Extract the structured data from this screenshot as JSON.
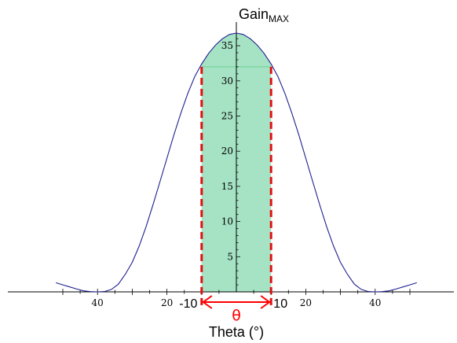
{
  "chart_data": {
    "type": "line",
    "title": "",
    "ylabel_main": "Gain",
    "ylabel_sub": "MAX",
    "xlabel": "Theta (°)",
    "theta_symbol": "θ",
    "xlim": [
      -52,
      52
    ],
    "ylim": [
      0,
      38
    ],
    "y_ticks": [
      5,
      10,
      15,
      20,
      25,
      30,
      35
    ],
    "x_ticks_small": [
      {
        "value": -40,
        "label": "40"
      },
      {
        "value": -20,
        "label": "20"
      },
      {
        "value": 20,
        "label": "20"
      },
      {
        "value": 40,
        "label": "40"
      }
    ],
    "x_ticks_large": [
      {
        "value": -10,
        "label": "-10"
      },
      {
        "value": 10,
        "label": "10"
      }
    ],
    "series": [
      {
        "color": "#1f1f8f",
        "x": [
          -52,
          -50,
          -48,
          -46,
          -44,
          -42,
          -40,
          -38,
          -36,
          -34,
          -32,
          -30,
          -28,
          -26,
          -24,
          -22,
          -20,
          -18,
          -16,
          -14,
          -12,
          -10,
          -8,
          -6,
          -4,
          -2,
          0,
          2,
          4,
          6,
          8,
          10,
          12,
          14,
          16,
          18,
          20,
          22,
          24,
          26,
          28,
          30,
          32,
          34,
          36,
          38,
          40,
          42,
          44,
          46,
          48,
          50,
          52
        ],
        "y": [
          1.3,
          1.0,
          0.7,
          0.4,
          0.15,
          0.03,
          0.0,
          0.05,
          0.35,
          1.1,
          2.5,
          4.2,
          6.5,
          9.3,
          12.4,
          15.7,
          19.0,
          22.3,
          25.4,
          28.2,
          30.6,
          32.4,
          33.9,
          35.1,
          36.0,
          36.6,
          36.8,
          36.6,
          36.0,
          35.1,
          33.9,
          32.4,
          30.6,
          28.2,
          25.4,
          22.3,
          19.0,
          15.7,
          12.4,
          9.3,
          6.5,
          4.2,
          2.5,
          1.1,
          0.35,
          0.05,
          0.0,
          0.03,
          0.15,
          0.4,
          0.7,
          1.0,
          1.3
        ]
      }
    ],
    "highlight_band": {
      "x_from": -10,
      "x_to": 10,
      "level": 32,
      "fill": "#a6e3c4",
      "line": "#7ed6a4"
    },
    "markers": {
      "dashed_color": "#e01010",
      "arrow_color": "#ff0000"
    }
  }
}
